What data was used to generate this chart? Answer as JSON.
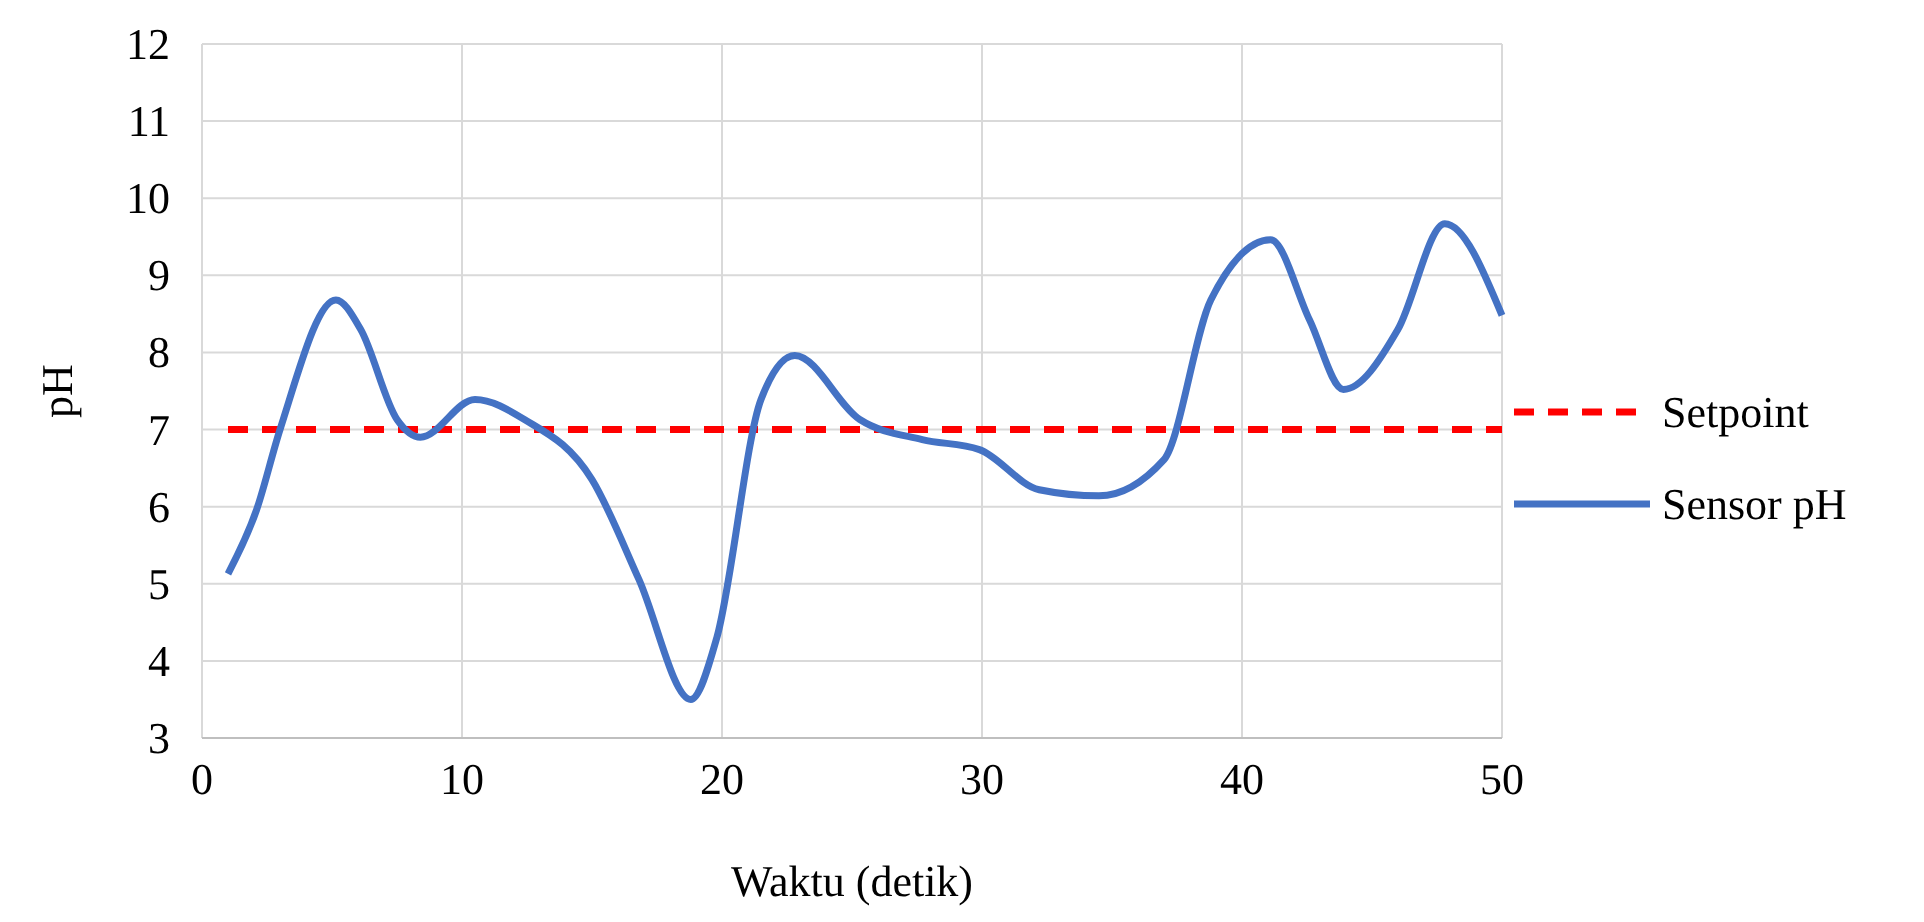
{
  "chart_data": {
    "type": "line",
    "xlabel": "Waktu (detik)",
    "ylabel": "pH",
    "xlim": [
      0,
      50
    ],
    "xticks": [
      0,
      10,
      20,
      30,
      40,
      50
    ],
    "ylim": [
      3,
      12
    ],
    "yticks": [
      3,
      4,
      5,
      6,
      7,
      8,
      9,
      10,
      11,
      12
    ],
    "grid": true,
    "legend": "right",
    "series": [
      {
        "name": "Setpoint",
        "color": "#ff0000",
        "line_style": "dashed",
        "x": [
          1,
          50
        ],
        "values": [
          7,
          7
        ]
      },
      {
        "name": "Sensor pH",
        "color": "#4472c4",
        "line_style": "solid",
        "x": [
          1,
          2.1,
          3,
          5.15,
          6.1,
          7.5,
          8.4,
          10.5,
          12.4,
          15,
          16.8,
          18.8,
          19.8,
          21.5,
          22.8,
          25.3,
          27.7,
          29.9,
          32.2,
          34.5,
          37,
          38.8,
          41.1,
          42.6,
          43.9,
          46,
          47.8,
          50
        ],
        "values": [
          5.13,
          5.96,
          7.0,
          8.68,
          8.3,
          7.13,
          6.9,
          7.39,
          7.13,
          6.35,
          5.06,
          3.5,
          4.3,
          7.39,
          7.96,
          7.13,
          6.87,
          6.74,
          6.22,
          6.14,
          6.61,
          8.68,
          9.46,
          8.42,
          7.52,
          8.3,
          9.67,
          8.48
        ]
      }
    ]
  }
}
